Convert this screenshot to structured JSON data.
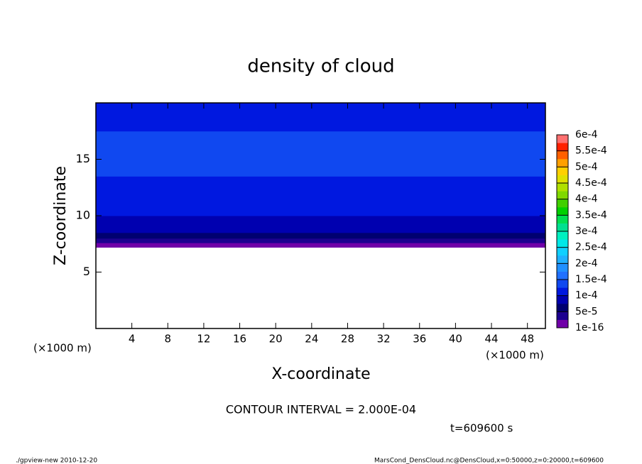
{
  "chart_data": {
    "type": "contour",
    "title": "density of cloud",
    "x_label": "X-coordinate",
    "y_label": "Z-coordinate",
    "x_unit": "(×1000 m)",
    "y_unit": "(×1000 m)",
    "xlim": [
      0,
      50
    ],
    "xticks": [
      4,
      8,
      12,
      16,
      20,
      24,
      28,
      32,
      36,
      40,
      44,
      48
    ],
    "ylim": [
      0,
      20
    ],
    "yticks": [
      5,
      10,
      15
    ],
    "zbins": [
      7.2,
      7.6,
      8.0,
      8.5,
      9.2,
      10.0,
      11.0,
      12.0,
      13.5,
      14.5,
      16.5,
      17.5,
      18.5,
      19.3,
      20
    ],
    "values": [
      1e-05,
      3.5e-05,
      6e-05,
      8.5e-05,
      9.5e-05,
      0.000105,
      0.00011,
      0.00012,
      0.00013,
      0.00014,
      0.00013,
      0.00012,
      0.00011,
      0.000105
    ],
    "colorbar": {
      "levels": [
        {
          "value": 1e-16,
          "label": "1e-16"
        },
        {
          "value": 5e-05,
          "label": "5e-5"
        },
        {
          "value": 0.0001,
          "label": "1e-4"
        },
        {
          "value": 0.00015,
          "label": "1.5e-4"
        },
        {
          "value": 0.0002,
          "label": "2e-4"
        },
        {
          "value": 0.00025,
          "label": "2.5e-4"
        },
        {
          "value": 0.0003,
          "label": "3e-4"
        },
        {
          "value": 0.00035,
          "label": "3.5e-4"
        },
        {
          "value": 0.0004,
          "label": "4e-4"
        },
        {
          "value": 0.00045,
          "label": "4.5e-4"
        },
        {
          "value": 0.0005,
          "label": "5e-4"
        },
        {
          "value": 0.00055,
          "label": "5.5e-4"
        },
        {
          "value": 0.0006,
          "label": "6e-4"
        }
      ],
      "colors": [
        "#7000a8",
        "#1c0090",
        "#000070",
        "#0000b0",
        "#0018e0",
        "#1048f0",
        "#2070ff",
        "#2090ff",
        "#20b0ff",
        "#10d0ff",
        "#00e8e8",
        "#00f0c0",
        "#00e090",
        "#00e050",
        "#00d000",
        "#40d000",
        "#80d800",
        "#b0e000",
        "#e0e000",
        "#ffd000",
        "#ffa000",
        "#ff6000",
        "#ff2000",
        "#ff7070"
      ]
    },
    "annotation": "CONTOUR INTERVAL = 2.000E-04",
    "time_label": "t=609600 s",
    "footer_left": "./gpview-new  2010-12-20",
    "footer_right": "MarsCond_DensCloud.nc@DensCloud,x=0:50000,z=0:20000,t=609600"
  }
}
